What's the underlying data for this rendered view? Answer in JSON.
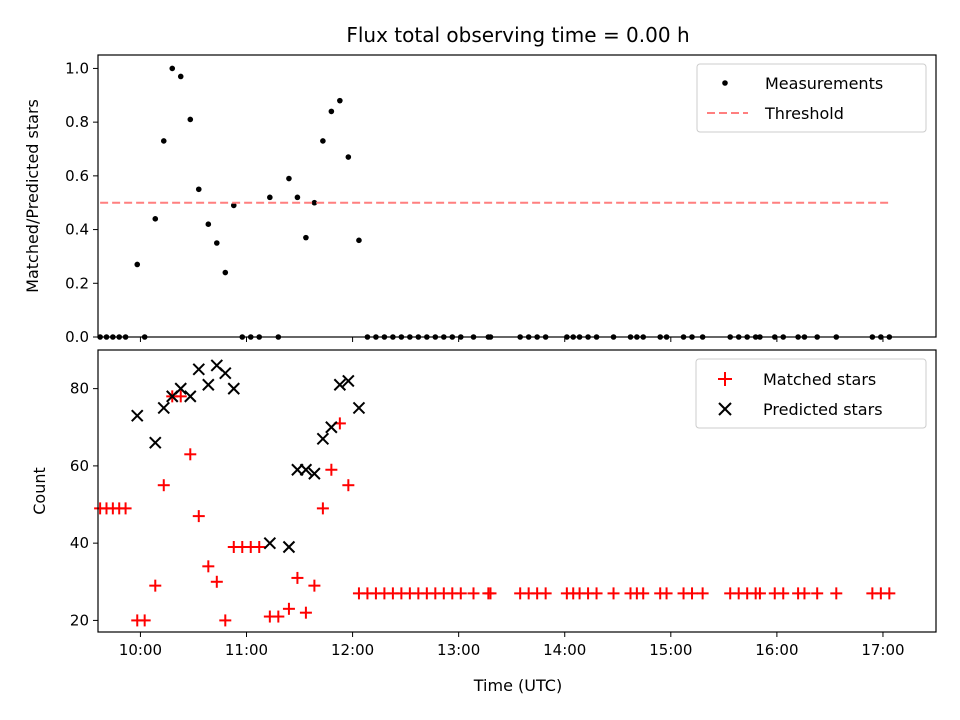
{
  "chart_data": [
    {
      "type": "scatter",
      "title": "Flux total observing time = 0.00 h",
      "xlabel": "",
      "ylabel": "Matched/Predicted stars",
      "xlim": [
        9.6,
        17.5
      ],
      "ylim": [
        0,
        1.05
      ],
      "yticks": [
        0.0,
        0.2,
        0.4,
        0.6,
        0.8,
        1.0
      ],
      "ytick_labels": [
        "0.0",
        "0.2",
        "0.4",
        "0.6",
        "0.8",
        "1.0"
      ],
      "legend": {
        "placement": "top-right",
        "entries": [
          "Measurements",
          "Threshold"
        ]
      },
      "series": [
        {
          "name": "Measurements",
          "color": "#000000",
          "marker": "dot",
          "x": [
            9.62,
            9.68,
            9.74,
            9.8,
            9.86,
            9.97,
            10.04,
            10.14,
            10.22,
            10.3,
            10.38,
            10.47,
            10.55,
            10.64,
            10.72,
            10.8,
            10.88,
            10.96,
            11.04,
            11.12,
            11.22,
            11.3,
            11.4,
            11.48,
            11.56,
            11.64,
            11.72,
            11.8,
            11.88,
            11.96,
            12.06,
            12.14,
            12.22,
            12.3,
            12.38,
            12.46,
            12.54,
            12.62,
            12.7,
            12.78,
            12.86,
            12.94,
            13.02,
            13.14,
            13.28,
            13.3,
            13.58,
            13.66,
            13.74,
            13.82,
            14.02,
            14.08,
            14.14,
            14.22,
            14.3,
            14.46,
            14.62,
            14.68,
            14.74,
            14.9,
            14.96,
            15.12,
            15.2,
            15.3,
            15.56,
            15.64,
            15.72,
            15.8,
            15.84,
            15.98,
            16.06,
            16.2,
            16.26,
            16.38,
            16.56,
            16.9,
            16.98,
            17.06
          ],
          "y": [
            0,
            0,
            0,
            0,
            0,
            0.27,
            0,
            0.44,
            0.73,
            1.0,
            0.97,
            0.81,
            0.55,
            0.42,
            0.35,
            0.24,
            0.49,
            0,
            0,
            0,
            0.52,
            0,
            0.59,
            0.52,
            0.37,
            0.5,
            0.73,
            0.84,
            0.88,
            0.67,
            0.36,
            0,
            0,
            0,
            0,
            0,
            0,
            0,
            0,
            0,
            0,
            0,
            0,
            0,
            0,
            0,
            0,
            0,
            0,
            0,
            0,
            0,
            0,
            0,
            0,
            0,
            0,
            0,
            0,
            0,
            0,
            0,
            0,
            0,
            0,
            0,
            0,
            0,
            0,
            0,
            0,
            0,
            0,
            0,
            0,
            0,
            0,
            0
          ]
        },
        {
          "name": "Threshold",
          "color": "#ff7f7f",
          "style": "dashed",
          "x": [
            9.62,
            17.06
          ],
          "y": [
            0.5,
            0.5
          ]
        }
      ]
    },
    {
      "type": "scatter",
      "title": "",
      "xlabel": "Time (UTC)",
      "ylabel": "Count",
      "xlim": [
        9.6,
        17.5
      ],
      "ylim": [
        17,
        90
      ],
      "yticks": [
        20,
        40,
        60,
        80
      ],
      "ytick_labels": [
        "20",
        "40",
        "60",
        "80"
      ],
      "xticks": [
        10,
        11,
        12,
        13,
        14,
        15,
        16,
        17
      ],
      "xtick_labels": [
        "10:00",
        "11:00",
        "12:00",
        "13:00",
        "14:00",
        "15:00",
        "16:00",
        "17:00"
      ],
      "legend": {
        "placement": "top-right",
        "entries": [
          "Matched stars",
          "Predicted stars"
        ]
      },
      "series": [
        {
          "name": "Matched stars",
          "color": "#ff0000",
          "marker": "plus",
          "x": [
            9.62,
            9.68,
            9.74,
            9.8,
            9.86,
            9.97,
            10.04,
            10.14,
            10.22,
            10.3,
            10.38,
            10.47,
            10.55,
            10.64,
            10.72,
            10.8,
            10.88,
            10.96,
            11.04,
            11.12,
            11.22,
            11.3,
            11.4,
            11.48,
            11.56,
            11.64,
            11.72,
            11.8,
            11.88,
            11.96,
            12.06,
            12.14,
            12.22,
            12.3,
            12.38,
            12.46,
            12.54,
            12.62,
            12.7,
            12.78,
            12.86,
            12.94,
            13.02,
            13.14,
            13.28,
            13.3,
            13.58,
            13.66,
            13.74,
            13.82,
            14.02,
            14.08,
            14.14,
            14.22,
            14.3,
            14.46,
            14.62,
            14.68,
            14.74,
            14.9,
            14.96,
            15.12,
            15.2,
            15.3,
            15.56,
            15.64,
            15.72,
            15.8,
            15.84,
            15.98,
            16.06,
            16.2,
            16.26,
            16.38,
            16.56,
            16.9,
            16.98,
            17.06
          ],
          "y": [
            49,
            49,
            49,
            49,
            49,
            20,
            20,
            29,
            55,
            78,
            78,
            63,
            47,
            34,
            30,
            20,
            39,
            39,
            39,
            39,
            21,
            21,
            23,
            31,
            22,
            29,
            49,
            59,
            71,
            55,
            27,
            27,
            27,
            27,
            27,
            27,
            27,
            27,
            27,
            27,
            27,
            27,
            27,
            27,
            27,
            27,
            27,
            27,
            27,
            27,
            27,
            27,
            27,
            27,
            27,
            27,
            27,
            27,
            27,
            27,
            27,
            27,
            27,
            27,
            27,
            27,
            27,
            27,
            27,
            27,
            27,
            27,
            27,
            27,
            27,
            27,
            27,
            27
          ]
        },
        {
          "name": "Predicted stars",
          "color": "#000000",
          "marker": "x",
          "x": [
            9.97,
            10.14,
            10.22,
            10.3,
            10.38,
            10.47,
            10.55,
            10.64,
            10.72,
            10.8,
            10.88,
            11.22,
            11.4,
            11.48,
            11.56,
            11.64,
            11.72,
            11.8,
            11.88,
            11.96,
            12.06
          ],
          "y": [
            73,
            66,
            75,
            78,
            80,
            78,
            85,
            81,
            86,
            84,
            80,
            40,
            39,
            59,
            59,
            58,
            67,
            70,
            81,
            82,
            75
          ]
        }
      ]
    }
  ]
}
